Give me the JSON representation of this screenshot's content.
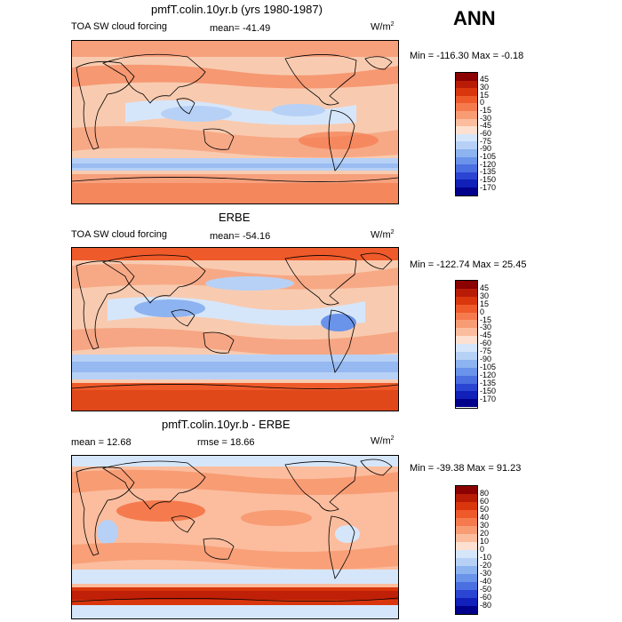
{
  "season": "ANN",
  "unit_label": "W/m",
  "unit_sup": "2",
  "panels": [
    {
      "title": "pmfT.colin.10yr.b (yrs 1980-1987)",
      "left_label": "TOA SW cloud forcing",
      "mean_text": "mean= -41.49",
      "minmax_text": "Min = -116.30 Max =  -0.18",
      "colorbar": {
        "labels": [
          "45",
          "30",
          "15",
          "0",
          "-15",
          "-30",
          "-45",
          "-60",
          "-75",
          "-90",
          "-105",
          "-120",
          "-135",
          "-150",
          "-170"
        ],
        "colors": [
          "#8b0000",
          "#b81c06",
          "#d9360d",
          "#ef5a2a",
          "#f57b4e",
          "#f89c74",
          "#fbbd9e",
          "#fde0cf",
          "#d6e6fa",
          "#b7d1f6",
          "#8db3f0",
          "#6a93ea",
          "#4a6fe0",
          "#2a45d2",
          "#1020b8",
          "#00008b"
        ]
      }
    },
    {
      "title": "ERBE",
      "left_label": "TOA SW cloud forcing",
      "mean_text": "mean= -54.16",
      "minmax_text": "Min = -122.74 Max =  25.45",
      "colorbar": {
        "labels": [
          "45",
          "30",
          "15",
          "0",
          "-15",
          "-30",
          "-45",
          "-60",
          "-75",
          "-90",
          "-105",
          "-120",
          "-135",
          "-150",
          "-170"
        ],
        "colors": [
          "#8b0000",
          "#b81c06",
          "#d9360d",
          "#ef5a2a",
          "#f57b4e",
          "#f89c74",
          "#fbbd9e",
          "#fde0cf",
          "#d6e6fa",
          "#b7d1f6",
          "#8db3f0",
          "#6a93ea",
          "#4a6fe0",
          "#2a45d2",
          "#1020b8",
          "#00008b"
        ]
      }
    },
    {
      "title": "pmfT.colin.10yr.b - ERBE",
      "left_label": "mean =   12.68",
      "mean_text": "rmse =   18.66",
      "minmax_text": "Min = -39.38 Max =  91.23",
      "colorbar": {
        "labels": [
          "80",
          "60",
          "50",
          "40",
          "30",
          "20",
          "10",
          "0",
          "-10",
          "-20",
          "-30",
          "-40",
          "-50",
          "-60",
          "-80"
        ],
        "colors": [
          "#8b0000",
          "#b81c06",
          "#d9360d",
          "#ef5a2a",
          "#f57b4e",
          "#f89c74",
          "#fbbd9e",
          "#fde0cf",
          "#d6e6fa",
          "#b7d1f6",
          "#8db3f0",
          "#6a93ea",
          "#4a6fe0",
          "#2a45d2",
          "#1020b8",
          "#00008b"
        ]
      }
    }
  ]
}
